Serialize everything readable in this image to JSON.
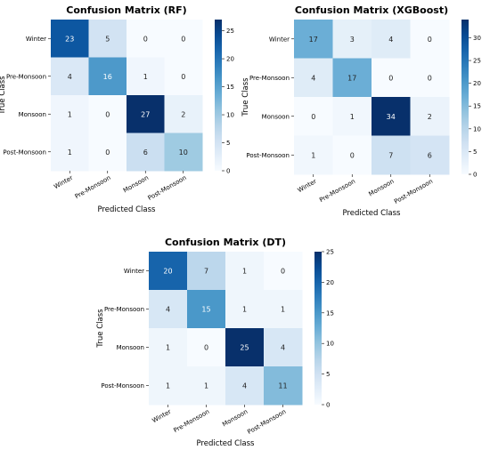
{
  "chart_data": [
    {
      "type": "heatmap",
      "title": "Confusion Matrix (RF)",
      "xlabel": "Predicted Class",
      "ylabel": "True Class",
      "x_categories": [
        "Winter",
        "Pre-Monsoon",
        "Monsoon",
        "Post-Monsoon"
      ],
      "y_categories": [
        "Winter",
        "Pre-Monsoon",
        "Monsoon",
        "Post-Monsoon"
      ],
      "values": [
        [
          23,
          5,
          0,
          0
        ],
        [
          4,
          16,
          1,
          0
        ],
        [
          1,
          0,
          27,
          2
        ],
        [
          1,
          0,
          6,
          10
        ]
      ],
      "colorbar": {
        "min": 0,
        "max": 27,
        "ticks": [
          0,
          5,
          10,
          15,
          20,
          25
        ]
      },
      "colormap": "Blues"
    },
    {
      "type": "heatmap",
      "title": "Confusion Matrix (XGBoost)",
      "xlabel": "Predicted Class",
      "ylabel": "True Class",
      "x_categories": [
        "Winter",
        "Pre-Monsoon",
        "Monsoon",
        "Post-Monsoon"
      ],
      "y_categories": [
        "Winter",
        "Pre-Monsoon",
        "Monsoon",
        "Post-Monsoon"
      ],
      "values": [
        [
          17,
          3,
          4,
          0
        ],
        [
          4,
          17,
          0,
          0
        ],
        [
          0,
          1,
          34,
          2
        ],
        [
          1,
          0,
          7,
          6
        ]
      ],
      "colorbar": {
        "min": 0,
        "max": 34,
        "ticks": [
          0,
          5,
          10,
          15,
          20,
          25,
          30
        ]
      },
      "colormap": "Blues"
    },
    {
      "type": "heatmap",
      "title": "Confusion Matrix (DT)",
      "xlabel": "Predicted Class",
      "ylabel": "True Class",
      "x_categories": [
        "Winter",
        "Pre-Monsoon",
        "Monsoon",
        "Post-Monsoon"
      ],
      "y_categories": [
        "Winter",
        "Pre-Monsoon",
        "Monsoon",
        "Post-Monsoon"
      ],
      "values": [
        [
          20,
          7,
          1,
          0
        ],
        [
          4,
          15,
          1,
          1
        ],
        [
          1,
          0,
          25,
          4
        ],
        [
          1,
          1,
          4,
          11
        ]
      ],
      "colorbar": {
        "min": 0,
        "max": 25,
        "ticks": [
          0,
          5,
          10,
          15,
          20,
          25
        ]
      },
      "colormap": "Blues"
    }
  ]
}
